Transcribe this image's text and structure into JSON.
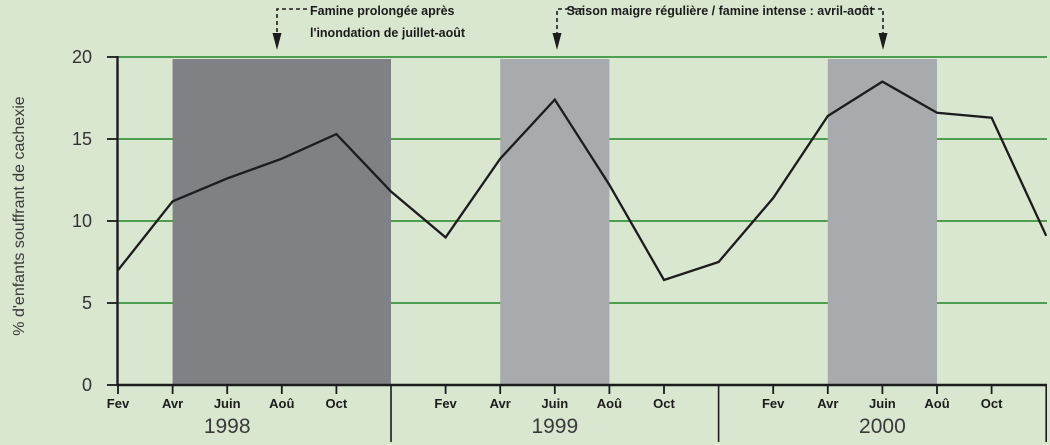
{
  "chart_data": {
    "type": "line",
    "title": "",
    "xlabel": "",
    "ylabel": "% d'enfants souffrant de cachexie",
    "ylim": [
      0,
      20
    ],
    "yticks": [
      0,
      5,
      10,
      15,
      20
    ],
    "grid": "horizontal green lines",
    "x_axis": {
      "years": [
        {
          "label": "1998",
          "month_labels": [
            "Fev",
            "Avr",
            "Juin",
            "Aoû",
            "Oct"
          ],
          "month_offsets": [
            0,
            2,
            4,
            6,
            8
          ]
        },
        {
          "label": "1999",
          "month_labels": [
            "Fev",
            "Avr",
            "Juin",
            "Aoû",
            "Oct"
          ],
          "month_offsets": [
            12,
            14,
            16,
            18,
            20
          ]
        },
        {
          "label": "2000",
          "month_labels": [
            "Fev",
            "Avr",
            "Juin",
            "Aoû",
            "Oct"
          ],
          "month_offsets": [
            24,
            26,
            28,
            30,
            32
          ]
        }
      ],
      "year_boundaries_m": [
        10,
        22,
        34
      ]
    },
    "series": [
      {
        "name": "% d'enfants souffrant de cachexie",
        "points": [
          {
            "m": 0,
            "v": 7.0
          },
          {
            "m": 2,
            "v": 11.2
          },
          {
            "m": 4,
            "v": 12.6
          },
          {
            "m": 6,
            "v": 13.8
          },
          {
            "m": 8,
            "v": 15.3
          },
          {
            "m": 10,
            "v": 11.8
          },
          {
            "m": 12,
            "v": 9.0
          },
          {
            "m": 14,
            "v": 13.8
          },
          {
            "m": 16,
            "v": 17.4
          },
          {
            "m": 18,
            "v": 12.2
          },
          {
            "m": 20,
            "v": 6.4
          },
          {
            "m": 22,
            "v": 7.5
          },
          {
            "m": 24,
            "v": 11.4
          },
          {
            "m": 26,
            "v": 16.4
          },
          {
            "m": 28,
            "v": 18.5
          },
          {
            "m": 30,
            "v": 16.6
          },
          {
            "m": 32,
            "v": 16.3
          },
          {
            "m": 34,
            "v": 9.1
          }
        ]
      }
    ],
    "shaded_periods": [
      {
        "label": "Famine prolongée après l'inondation de juillet-août",
        "from_m": 2,
        "to_m": 10,
        "color": "#7f8184"
      },
      {
        "label": "Saison maigre régulière / famine intense : avril-août",
        "from_m": 14,
        "to_m": 18,
        "color": "#a8abae"
      },
      {
        "label": "Saison maigre régulière / famine intense : avril-août",
        "from_m": 26,
        "to_m": 30,
        "color": "#a8abae"
      }
    ]
  },
  "annotations": {
    "flood_famine": {
      "line1": "Famine prolongée après",
      "line2": "l'inondation de juillet-août"
    },
    "lean_season": {
      "text": "Saison maigre régulière / famine intense : avril-août"
    }
  },
  "colors": {
    "background": "#d9e6d0",
    "gridline": "#4d9e4f",
    "famine_band_dark": "#7f8184",
    "lean_band_light": "#a8abae",
    "line": "#1c1c1c"
  }
}
